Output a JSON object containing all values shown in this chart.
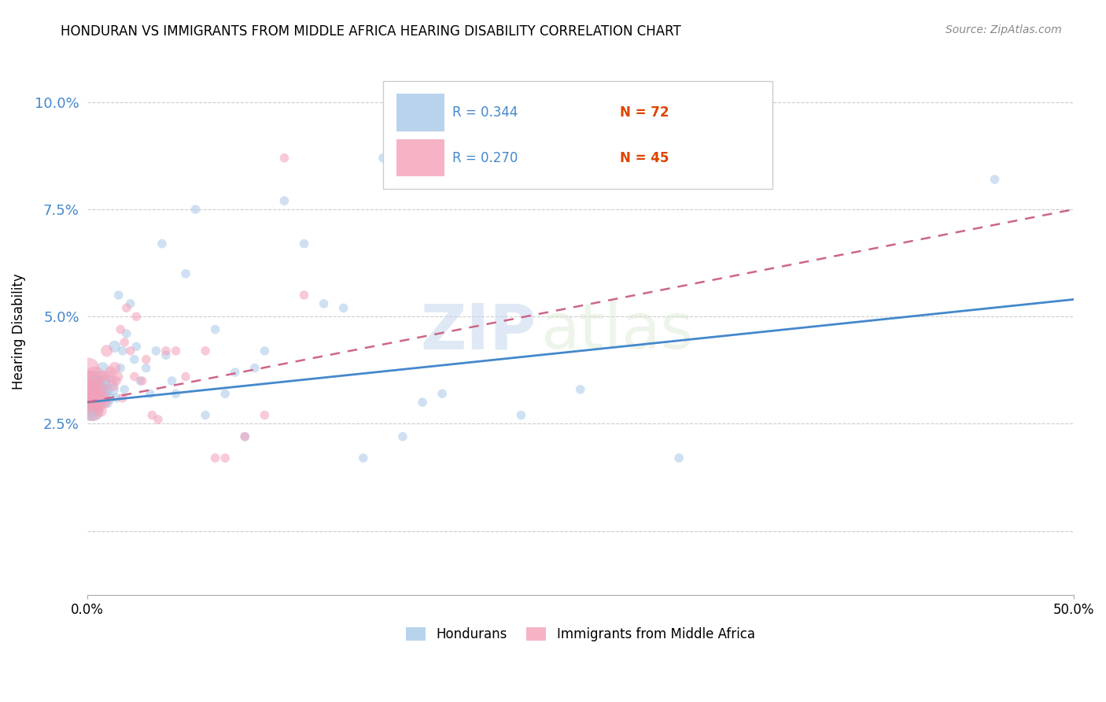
{
  "title": "HONDURAN VS IMMIGRANTS FROM MIDDLE AFRICA HEARING DISABILITY CORRELATION CHART",
  "source": "Source: ZipAtlas.com",
  "ylabel": "Hearing Disability",
  "xlim": [
    0.0,
    0.5
  ],
  "ylim": [
    -0.015,
    0.108
  ],
  "yticks": [
    0.0,
    0.025,
    0.05,
    0.075,
    0.1
  ],
  "ytick_labels": [
    "",
    "2.5%",
    "5.0%",
    "7.5%",
    "10.0%"
  ],
  "xticks": [
    0.0,
    0.5
  ],
  "xtick_labels": [
    "0.0%",
    "50.0%"
  ],
  "watermark_zip": "ZIP",
  "watermark_atlas": "atlas",
  "legend_r1": "R = 0.344",
  "legend_n1": "N = 72",
  "legend_r2": "R = 0.270",
  "legend_n2": "N = 45",
  "color_blue": "#a8c8e8",
  "color_pink": "#f4a0b8",
  "line_blue": "#4488cc",
  "line_pink": "#cc6688",
  "blue_line_y0": 0.03,
  "blue_line_y1": 0.054,
  "pink_line_y0": 0.03,
  "pink_line_y1": 0.075,
  "hondurans_x": [
    0.001,
    0.001,
    0.001,
    0.002,
    0.002,
    0.002,
    0.003,
    0.003,
    0.003,
    0.004,
    0.004,
    0.004,
    0.005,
    0.005,
    0.005,
    0.005,
    0.006,
    0.006,
    0.006,
    0.007,
    0.007,
    0.008,
    0.008,
    0.008,
    0.009,
    0.009,
    0.01,
    0.01,
    0.011,
    0.012,
    0.013,
    0.014,
    0.015,
    0.016,
    0.017,
    0.018,
    0.019,
    0.02,
    0.022,
    0.024,
    0.025,
    0.027,
    0.03,
    0.032,
    0.035,
    0.038,
    0.04,
    0.043,
    0.045,
    0.05,
    0.055,
    0.06,
    0.065,
    0.07,
    0.075,
    0.08,
    0.085,
    0.09,
    0.1,
    0.11,
    0.12,
    0.13,
    0.14,
    0.15,
    0.16,
    0.17,
    0.18,
    0.2,
    0.22,
    0.25,
    0.3,
    0.46
  ],
  "hondurans_y": [
    0.032,
    0.03,
    0.028,
    0.035,
    0.031,
    0.029,
    0.033,
    0.03,
    0.028,
    0.034,
    0.032,
    0.03,
    0.036,
    0.033,
    0.031,
    0.029,
    0.035,
    0.032,
    0.03,
    0.034,
    0.031,
    0.038,
    0.033,
    0.03,
    0.035,
    0.032,
    0.033,
    0.03,
    0.031,
    0.035,
    0.033,
    0.043,
    0.031,
    0.055,
    0.038,
    0.042,
    0.033,
    0.046,
    0.053,
    0.04,
    0.043,
    0.035,
    0.038,
    0.032,
    0.042,
    0.067,
    0.041,
    0.035,
    0.032,
    0.06,
    0.075,
    0.027,
    0.047,
    0.032,
    0.037,
    0.022,
    0.038,
    0.042,
    0.077,
    0.067,
    0.053,
    0.052,
    0.017,
    0.087,
    0.022,
    0.03,
    0.032,
    0.098,
    0.027,
    0.033,
    0.017,
    0.082
  ],
  "middle_africa_x": [
    0.001,
    0.001,
    0.002,
    0.002,
    0.003,
    0.003,
    0.004,
    0.004,
    0.005,
    0.005,
    0.006,
    0.006,
    0.007,
    0.008,
    0.008,
    0.009,
    0.009,
    0.01,
    0.011,
    0.012,
    0.013,
    0.014,
    0.015,
    0.016,
    0.017,
    0.018,
    0.019,
    0.02,
    0.022,
    0.024,
    0.025,
    0.028,
    0.03,
    0.033,
    0.036,
    0.04,
    0.045,
    0.05,
    0.06,
    0.065,
    0.07,
    0.08,
    0.09,
    0.1,
    0.11
  ],
  "middle_africa_y": [
    0.038,
    0.033,
    0.035,
    0.03,
    0.031,
    0.028,
    0.036,
    0.033,
    0.03,
    0.032,
    0.031,
    0.029,
    0.028,
    0.036,
    0.033,
    0.031,
    0.03,
    0.042,
    0.036,
    0.037,
    0.034,
    0.038,
    0.035,
    0.036,
    0.047,
    0.031,
    0.044,
    0.052,
    0.042,
    0.036,
    0.05,
    0.035,
    0.04,
    0.027,
    0.026,
    0.042,
    0.042,
    0.036,
    0.042,
    0.017,
    0.017,
    0.022,
    0.027,
    0.087,
    0.055
  ]
}
